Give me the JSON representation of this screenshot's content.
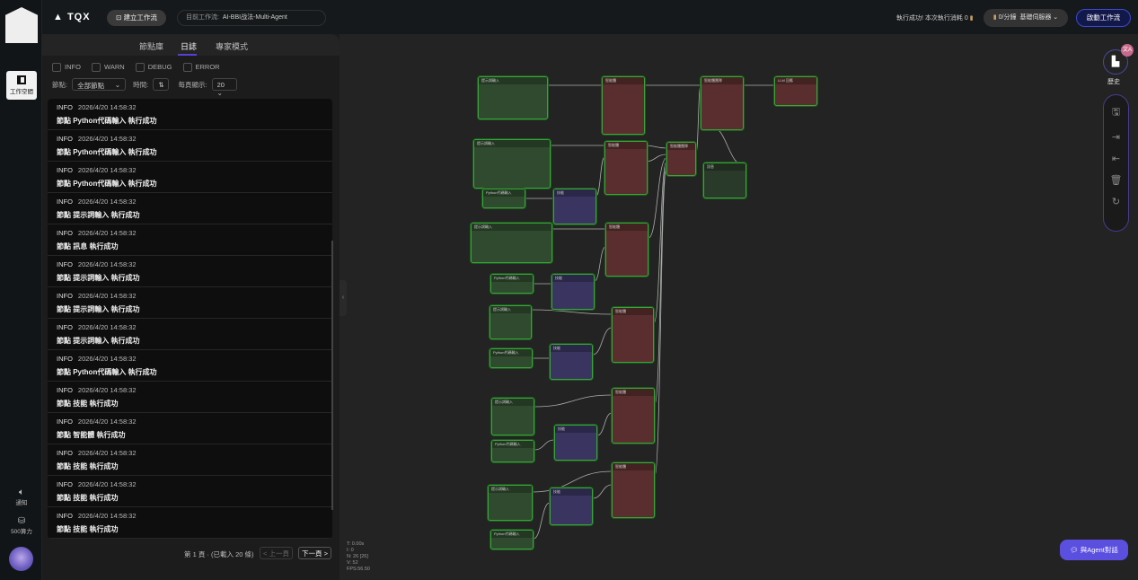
{
  "header": {
    "brand": "TQX",
    "create_button": "建立工作流",
    "current_label": "目前工作流:",
    "current_value": "AI-BBI战法-Multi-Agent",
    "status": "執行成功! 本次執行消耗 0",
    "rate": "0/分鐘",
    "server": "基礎伺服器",
    "launch_button": "啟動工作流"
  },
  "sidebar": {
    "workspace": "工作空間",
    "notify": "通知",
    "compute": "500算力"
  },
  "panel": {
    "tabs": [
      "節點庫",
      "日誌",
      "專家模式"
    ],
    "active_tab": "日誌",
    "levels": [
      "INFO",
      "WARN",
      "DEBUG",
      "ERROR"
    ],
    "node_label": "節點:",
    "node_value": "全部節點",
    "time_label": "時間:",
    "page_size_label": "每頁顯示:",
    "page_size": "20",
    "logs": [
      {
        "level": "INFO",
        "time": "2026/4/20 14:58:32",
        "msg": "節點 Python代碼輸入 執行成功"
      },
      {
        "level": "INFO",
        "time": "2026/4/20 14:58:32",
        "msg": "節點 Python代碼輸入 執行成功"
      },
      {
        "level": "INFO",
        "time": "2026/4/20 14:58:32",
        "msg": "節點 Python代碼輸入 執行成功"
      },
      {
        "level": "INFO",
        "time": "2026/4/20 14:58:32",
        "msg": "節點 提示詞輸入 執行成功"
      },
      {
        "level": "INFO",
        "time": "2026/4/20 14:58:32",
        "msg": "節點 訊息 執行成功"
      },
      {
        "level": "INFO",
        "time": "2026/4/20 14:58:32",
        "msg": "節點 提示詞輸入 執行成功"
      },
      {
        "level": "INFO",
        "time": "2026/4/20 14:58:32",
        "msg": "節點 提示詞輸入 執行成功"
      },
      {
        "level": "INFO",
        "time": "2026/4/20 14:58:32",
        "msg": "節點 提示詞輸入 執行成功"
      },
      {
        "level": "INFO",
        "time": "2026/4/20 14:58:32",
        "msg": "節點 Python代碼輸入 執行成功"
      },
      {
        "level": "INFO",
        "time": "2026/4/20 14:58:32",
        "msg": "節點 技能 執行成功"
      },
      {
        "level": "INFO",
        "time": "2026/4/20 14:58:32",
        "msg": "節點 智能體 執行成功"
      },
      {
        "level": "INFO",
        "time": "2026/4/20 14:58:32",
        "msg": "節點 技能 執行成功"
      },
      {
        "level": "INFO",
        "time": "2026/4/20 14:58:32",
        "msg": "節點 技能 執行成功"
      },
      {
        "level": "INFO",
        "time": "2026/4/20 14:58:32",
        "msg": "節點 技能 執行成功"
      },
      {
        "level": "INFO",
        "time": "2026/4/20 14:58:32",
        "msg": "節點 技能 執行成功"
      }
    ],
    "page_info": "第 1 頁 · (已載入 20 條)",
    "prev": "< 上一頁",
    "next": "下一頁 >"
  },
  "canvas": {
    "stats": [
      "T: 0.00s",
      "I: 0",
      "N: 26 [26]",
      "V: 52",
      "FPS:56.50"
    ],
    "node_titles": {
      "prompt": "提示詞輸入",
      "python": "Python代碼輸入",
      "agent": "智能體",
      "team": "智能體團隊",
      "llm": "LLM 回應",
      "message": "訊息",
      "skill": "技能"
    }
  },
  "right": {
    "history": "歷史",
    "chat_button": "與Agent對話"
  },
  "colors": {
    "accent": "#5a3fd6",
    "node_green": "#3aa33a",
    "agent": "#5a2e2e",
    "skill": "#3a3560"
  }
}
